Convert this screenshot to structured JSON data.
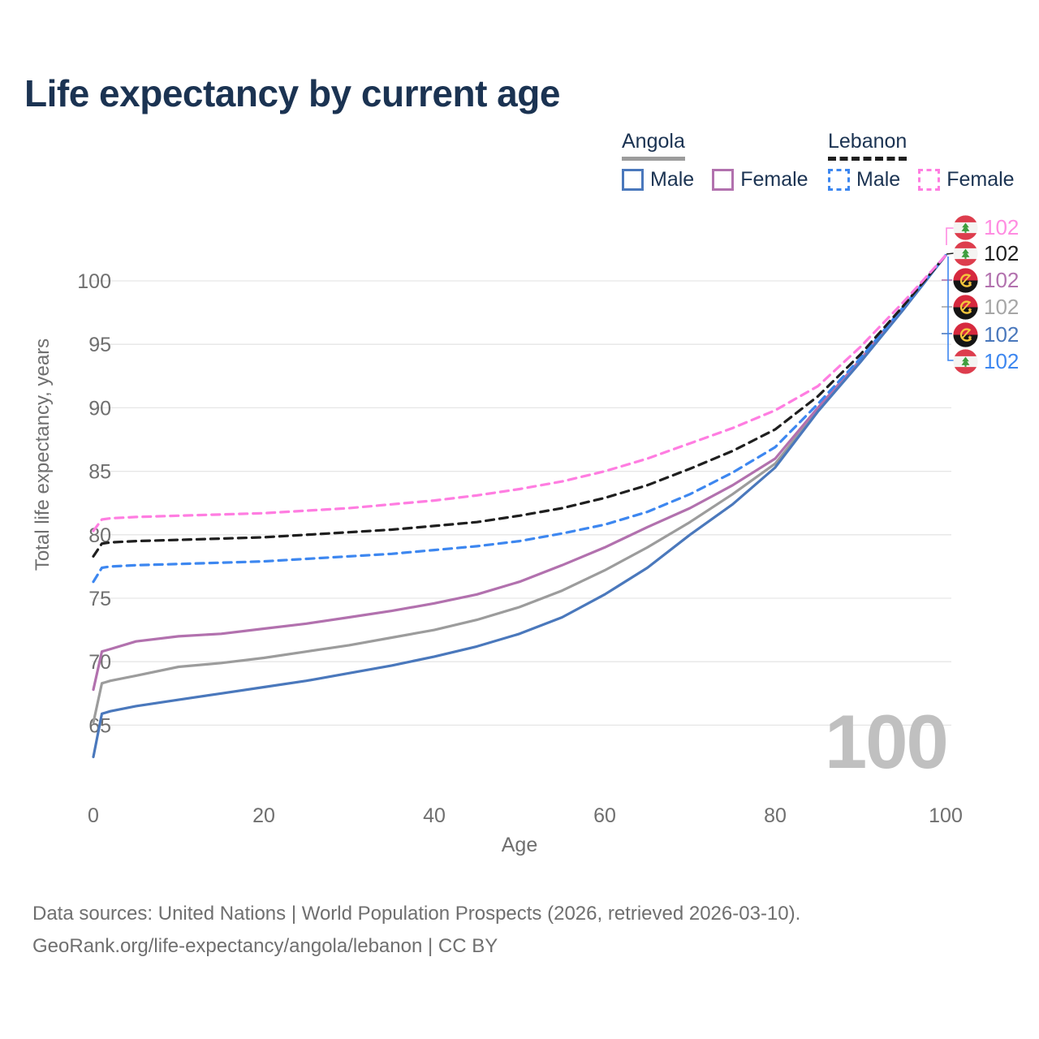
{
  "title": "Life expectancy by current age",
  "legend": {
    "groups": [
      {
        "label": "Angola",
        "underline": "solid",
        "underline_color": "#9c9c9c",
        "items": [
          {
            "label": "Male",
            "color": "#4a78bc",
            "dashed": false
          },
          {
            "label": "Female",
            "color": "#b271ae",
            "dashed": false
          }
        ]
      },
      {
        "label": "Lebanon",
        "underline": "dashed",
        "underline_color": "#1f1f1f",
        "items": [
          {
            "label": "Male",
            "color": "#3d87f0",
            "dashed": true
          },
          {
            "label": "Female",
            "color": "#ff7de1",
            "dashed": true
          }
        ]
      }
    ]
  },
  "watermark": "100",
  "right_labels": [
    {
      "flag": "lebanon",
      "value": "102",
      "color": "#ff8ce1",
      "series": "Lebanon Female"
    },
    {
      "flag": "lebanon",
      "value": "102",
      "color": "#1f1f1f",
      "series": "Lebanon"
    },
    {
      "flag": "angola",
      "value": "102",
      "color": "#b271ae",
      "series": "Angola Female"
    },
    {
      "flag": "angola",
      "value": "102",
      "color": "#a6a6a6",
      "series": "Angola"
    },
    {
      "flag": "angola",
      "value": "102",
      "color": "#4a78bc",
      "series": "Angola Male"
    },
    {
      "flag": "lebanon",
      "value": "102",
      "color": "#3d87f0",
      "series": "Lebanon Male"
    }
  ],
  "footer": {
    "line1": "Data sources: United Nations | World Population Prospects (2026, retrieved 2026-03-10).",
    "line2": "GeoRank.org/life-expectancy/angola/lebanon | CC BY"
  },
  "chart_data": {
    "type": "line",
    "title": "Life expectancy by current age",
    "xlabel": "Age",
    "ylabel": "Total life expectancy, years",
    "xlim": [
      0,
      100
    ],
    "ylim": [
      61,
      103
    ],
    "x_ticks": [
      0,
      20,
      40,
      60,
      80,
      100
    ],
    "y_ticks": [
      65,
      70,
      75,
      80,
      85,
      90,
      95,
      100
    ],
    "grid": "horizontal",
    "legend_position": "top-right",
    "x": [
      0,
      1,
      2,
      5,
      10,
      15,
      20,
      25,
      30,
      35,
      40,
      45,
      50,
      55,
      60,
      65,
      70,
      75,
      80,
      85,
      90,
      95,
      100
    ],
    "series": [
      {
        "name": "Angola",
        "country": "Angola",
        "sex": "Both",
        "style": "solid",
        "color": "#9c9c9c",
        "values": [
          65.2,
          68.3,
          68.5,
          68.9,
          69.6,
          69.9,
          70.3,
          70.8,
          71.3,
          71.9,
          72.5,
          73.3,
          74.3,
          75.6,
          77.2,
          79.0,
          81.0,
          83.2,
          85.6,
          89.8,
          93.7,
          97.8,
          102
        ]
      },
      {
        "name": "Angola Female",
        "country": "Angola",
        "sex": "Female",
        "style": "solid",
        "color": "#b271ae",
        "values": [
          67.8,
          70.8,
          71.0,
          71.6,
          72.0,
          72.2,
          72.6,
          73.0,
          73.5,
          74.0,
          74.6,
          75.3,
          76.3,
          77.6,
          79.0,
          80.6,
          82.1,
          83.9,
          86.0,
          90.0,
          93.8,
          97.9,
          102
        ]
      },
      {
        "name": "Angola Male",
        "country": "Angola",
        "sex": "Male",
        "style": "solid",
        "color": "#4a78bc",
        "values": [
          62.5,
          65.9,
          66.1,
          66.5,
          67.0,
          67.5,
          68.0,
          68.5,
          69.1,
          69.7,
          70.4,
          71.2,
          72.2,
          73.5,
          75.3,
          77.4,
          80.0,
          82.4,
          85.3,
          89.7,
          93.6,
          97.7,
          102
        ]
      },
      {
        "name": "Lebanon Male",
        "country": "Lebanon",
        "sex": "Male",
        "style": "dashed",
        "color": "#3d87f0",
        "values": [
          76.3,
          77.4,
          77.5,
          77.6,
          77.7,
          77.8,
          77.9,
          78.1,
          78.3,
          78.5,
          78.8,
          79.1,
          79.5,
          80.1,
          80.8,
          81.8,
          83.2,
          84.9,
          86.9,
          90.3,
          93.9,
          97.9,
          102
        ]
      },
      {
        "name": "Lebanon",
        "country": "Lebanon",
        "sex": "Both",
        "style": "dashed",
        "color": "#1f1f1f",
        "values": [
          78.3,
          79.3,
          79.4,
          79.5,
          79.6,
          79.7,
          79.8,
          80.0,
          80.2,
          80.4,
          80.7,
          81.0,
          81.5,
          82.1,
          82.9,
          83.9,
          85.2,
          86.6,
          88.3,
          90.9,
          94.2,
          98.0,
          102
        ]
      },
      {
        "name": "Lebanon Female",
        "country": "Lebanon",
        "sex": "Female",
        "style": "dashed",
        "color": "#ff7de1",
        "values": [
          80.3,
          81.2,
          81.3,
          81.4,
          81.5,
          81.6,
          81.7,
          81.9,
          82.1,
          82.4,
          82.7,
          83.1,
          83.6,
          84.2,
          85.0,
          86.0,
          87.2,
          88.4,
          89.8,
          91.7,
          94.8,
          98.3,
          102
        ]
      }
    ],
    "end_labels": [
      {
        "series": "Lebanon Female",
        "value": 102
      },
      {
        "series": "Lebanon",
        "value": 102
      },
      {
        "series": "Angola Female",
        "value": 102
      },
      {
        "series": "Angola",
        "value": 102
      },
      {
        "series": "Angola Male",
        "value": 102
      },
      {
        "series": "Lebanon Male",
        "value": 102
      }
    ]
  }
}
